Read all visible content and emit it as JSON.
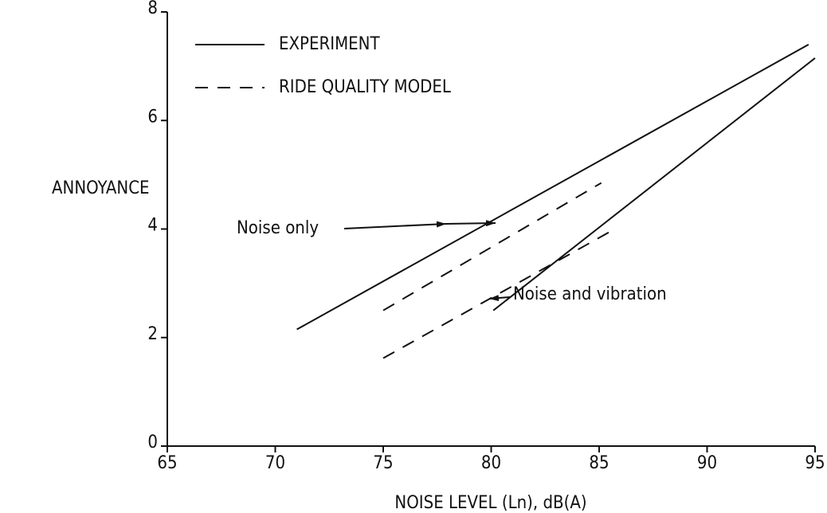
{
  "chart_data": {
    "type": "line",
    "xlabel": "NOISE LEVEL (Ln), dB(A)",
    "ylabel": "ANNOYANCE",
    "xlim": [
      65,
      95
    ],
    "xticks": [
      65,
      70,
      75,
      80,
      85,
      90,
      95
    ],
    "ylim": [
      0,
      8
    ],
    "yticks": [
      0,
      2,
      4,
      6,
      8
    ],
    "grid": false,
    "legend": [
      {
        "label": "EXPERIMENT",
        "style": "solid"
      },
      {
        "label": "RIDE QUALITY MODEL",
        "style": "dashed"
      }
    ],
    "series": [
      {
        "style": "solid",
        "color": "#111111",
        "x": [
          71,
          94.7
        ],
        "values": [
          2.15,
          7.4
        ]
      },
      {
        "style": "solid",
        "color": "#111111",
        "x": [
          80.1,
          95
        ],
        "values": [
          2.5,
          7.15
        ]
      },
      {
        "style": "dashed",
        "color": "#111111",
        "x": [
          75,
          85.1
        ],
        "values": [
          2.5,
          4.85
        ]
      },
      {
        "style": "dashed",
        "color": "#111111",
        "x": [
          75,
          85.5
        ],
        "values": [
          1.62,
          3.95
        ]
      }
    ],
    "annotations": [
      {
        "text": "Noise only"
      },
      {
        "text": "Noise and vibration"
      }
    ]
  }
}
